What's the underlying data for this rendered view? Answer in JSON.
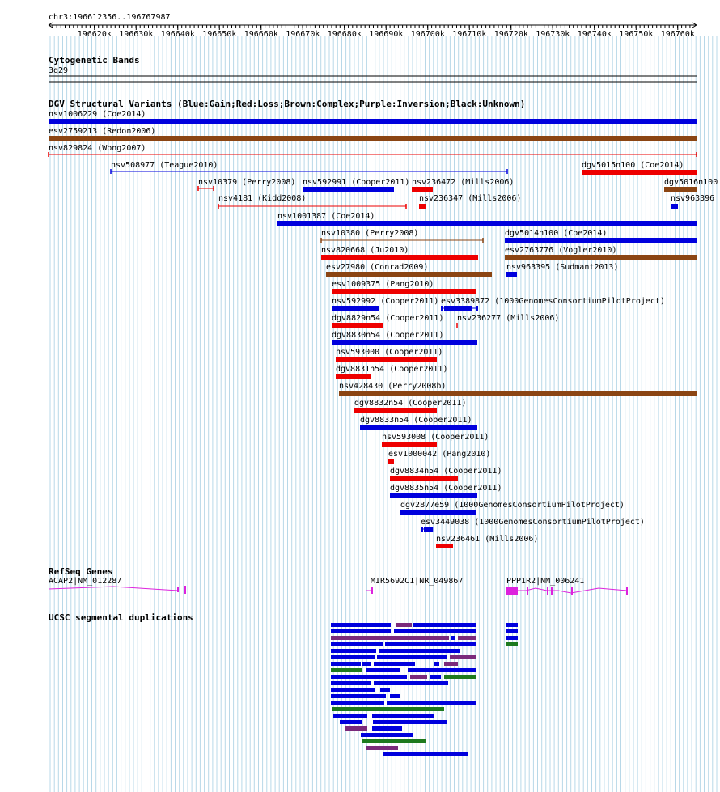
{
  "colors": {
    "gain": "#0000dd",
    "loss": "#ee0000",
    "complex": "#8b4513",
    "purple": "#7b2a7b",
    "green": "#1e7a1e",
    "gene": "#dd22dd",
    "grid": "#b8d8e8"
  },
  "region": {
    "label": "chr3:196612356..196767987",
    "ticks": [
      "196620k",
      "196630k",
      "196640k",
      "196650k",
      "196660k",
      "196670k",
      "196680k",
      "196690k",
      "196700k",
      "196710k",
      "196720k",
      "196730k",
      "196740k",
      "196750k",
      "196760k"
    ]
  },
  "tracks": {
    "cytoband": {
      "title": "Cytogenetic Bands",
      "band": "3q29"
    },
    "dgv": {
      "title": "DGV Structural Variants (Blue:Gain;Red:Loss;Brown:Complex;Purple:Inversion;Black:Unknown)",
      "features": [
        {
          "label": "nsv1006229 (Coe2014)",
          "type": "gain",
          "style": "bar"
        },
        {
          "label": "esv2759213 (Redon2006)",
          "type": "complex",
          "style": "bar"
        },
        {
          "label": "nsv829824 (Wong2007)",
          "type": "loss",
          "style": "line"
        },
        {
          "label": "nsv508977 (Teague2010)",
          "type": "gain",
          "style": "line"
        },
        {
          "label": "dgv5015n100 (Coe2014)",
          "type": "loss",
          "style": "bar"
        },
        {
          "label": "nsv10379 (Perry2008)",
          "type": "loss",
          "style": "line"
        },
        {
          "label": "nsv592991 (Cooper2011)",
          "type": "gain",
          "style": "bar"
        },
        {
          "label": "nsv236472 (Mills2006)",
          "type": "loss",
          "style": "bar"
        },
        {
          "label": "dgv5016n100",
          "type": "complex",
          "style": "bar"
        },
        {
          "label": "nsv4181 (Kidd2008)",
          "type": "loss",
          "style": "line"
        },
        {
          "label": "nsv236347 (Mills2006)",
          "type": "loss",
          "style": "bar"
        },
        {
          "label": "nsv963396",
          "type": "gain",
          "style": "bar"
        },
        {
          "label": "nsv1001387 (Coe2014)",
          "type": "gain",
          "style": "bar"
        },
        {
          "label": "nsv10380 (Perry2008)",
          "type": "complex",
          "style": "line"
        },
        {
          "label": "dgv5014n100 (Coe2014)",
          "type": "gain",
          "style": "bar"
        },
        {
          "label": "nsv820668 (Ju2010)",
          "type": "loss",
          "style": "bar"
        },
        {
          "label": "esv2763776 (Vogler2010)",
          "type": "complex",
          "style": "bar"
        },
        {
          "label": "esv27980 (Conrad2009)",
          "type": "complex",
          "style": "bar"
        },
        {
          "label": "nsv963395 (Sudmant2013)",
          "type": "gain",
          "style": "bar"
        },
        {
          "label": "esv1009375 (Pang2010)",
          "type": "loss",
          "style": "bar"
        },
        {
          "label": "nsv592992 (Cooper2011)",
          "type": "gain",
          "style": "bar"
        },
        {
          "label": "esv3389872 (1000GenomesConsortiumPilotProject)",
          "type": "gain",
          "style": "dumbbell"
        },
        {
          "label": "dgv8829n54 (Cooper2011)",
          "type": "loss",
          "style": "bar"
        },
        {
          "label": "nsv236277 (Mills2006)",
          "type": "loss",
          "style": "tick"
        },
        {
          "label": "dgv8830n54 (Cooper2011)",
          "type": "gain",
          "style": "bar"
        },
        {
          "label": "nsv593000 (Cooper2011)",
          "type": "loss",
          "style": "bar"
        },
        {
          "label": "dgv8831n54 (Cooper2011)",
          "type": "loss",
          "style": "bar"
        },
        {
          "label": "nsv428430 (Perry2008b)",
          "type": "complex",
          "style": "bar"
        },
        {
          "label": "dgv8832n54 (Cooper2011)",
          "type": "loss",
          "style": "bar"
        },
        {
          "label": "dgv8833n54 (Cooper2011)",
          "type": "gain",
          "style": "bar"
        },
        {
          "label": "nsv593008 (Cooper2011)",
          "type": "loss",
          "style": "bar"
        },
        {
          "label": "esv1000042 (Pang2010)",
          "type": "loss",
          "style": "bar"
        },
        {
          "label": "dgv8834n54 (Cooper2011)",
          "type": "loss",
          "style": "bar"
        },
        {
          "label": "dgv8835n54 (Cooper2011)",
          "type": "gain",
          "style": "bar"
        },
        {
          "label": "dgv2877e59 (1000GenomesConsortiumPilotProject)",
          "type": "gain",
          "style": "bar"
        },
        {
          "label": "esv3449038 (1000GenomesConsortiumPilotProject)",
          "type": "gain",
          "style": "dumbbell"
        },
        {
          "label": "nsv236461 (Mills2006)",
          "type": "loss",
          "style": "bar"
        }
      ]
    },
    "refseq": {
      "title": "RefSeq Genes",
      "genes": [
        {
          "label": "ACAP2|NM_012287"
        },
        {
          "label": "MIR5692C1|NR_049867"
        },
        {
          "label": "PPP1R2|NM_006241"
        }
      ]
    },
    "segdup": {
      "title": "UCSC segmental duplications"
    }
  }
}
